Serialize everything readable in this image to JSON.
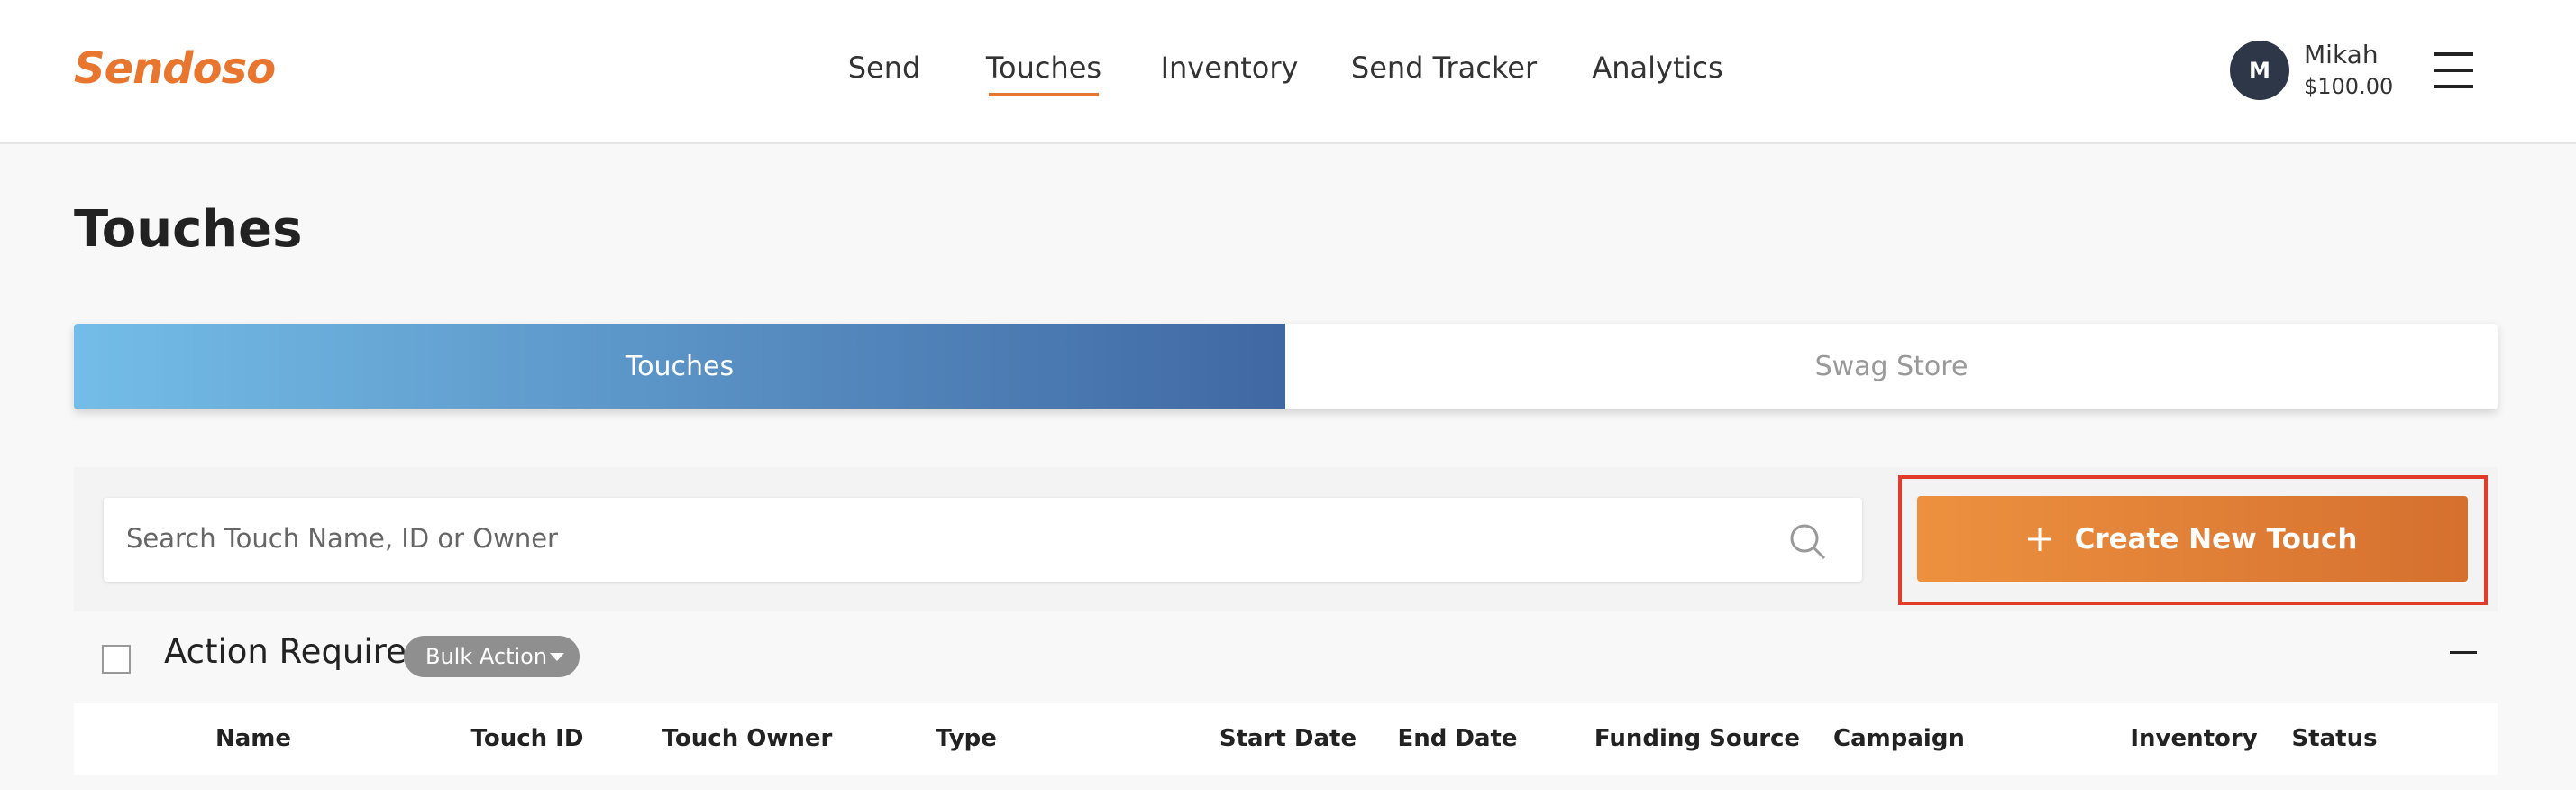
{
  "header": {
    "logo": "Sendoso",
    "nav": [
      "Send",
      "Touches",
      "Inventory",
      "Send Tracker",
      "Analytics"
    ],
    "user": {
      "initial": "M",
      "name": "Mikah",
      "balance": "$100.00"
    }
  },
  "page": {
    "title": "Touches",
    "tabs": [
      "Touches",
      "Swag Store"
    ],
    "search_placeholder": "Search Touch Name, ID or Owner",
    "create_button": "Create New Touch"
  },
  "section": {
    "title": "Action Required",
    "bulk_action": "Bulk Action"
  },
  "table": {
    "columns": [
      "Name",
      "Touch ID",
      "Touch Owner",
      "Type",
      "Start Date",
      "End Date",
      "Funding Source",
      "Campaign",
      "Inventory",
      "Status"
    ]
  }
}
